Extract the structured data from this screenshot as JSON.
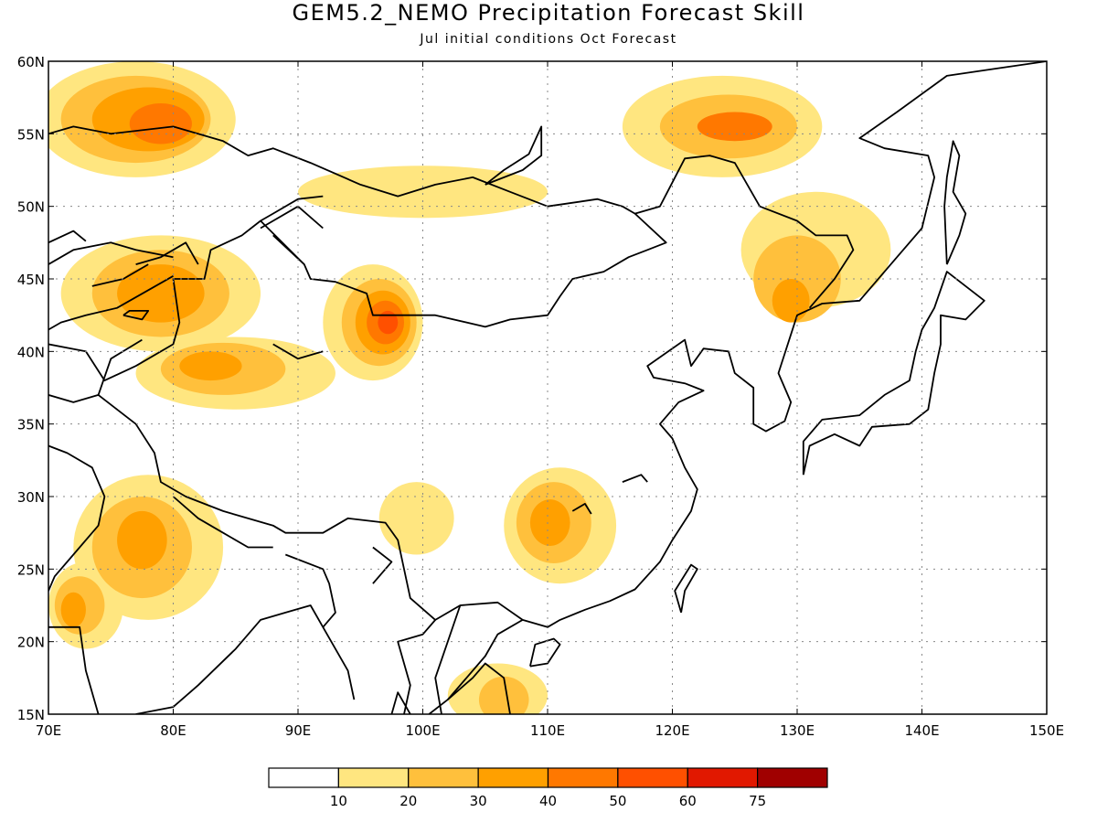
{
  "title": "GEM5.2_NEMO Precipitation Forecast Skill",
  "subtitle": "Jul initial conditions  Oct Forecast",
  "map": {
    "lon_range": [
      70,
      150
    ],
    "lat_range": [
      15,
      60
    ],
    "lon_ticks": [
      70,
      80,
      90,
      100,
      110,
      120,
      130,
      140,
      150
    ],
    "lat_ticks": [
      15,
      20,
      25,
      30,
      35,
      40,
      45,
      50,
      55,
      60
    ],
    "lon_tick_labels": [
      "70E",
      "80E",
      "90E",
      "100E",
      "110E",
      "120E",
      "130E",
      "140E",
      "150E"
    ],
    "lat_tick_labels": [
      "15N",
      "20N",
      "25N",
      "30N",
      "35N",
      "40N",
      "45N",
      "50N",
      "55N",
      "60N"
    ],
    "grid": "dotted"
  },
  "colorbar": {
    "levels": [
      10,
      20,
      30,
      40,
      50,
      60,
      75
    ],
    "labels": [
      "10",
      "20",
      "30",
      "40",
      "50",
      "60",
      "75"
    ],
    "colors": [
      "#ffffff",
      "#ffe680",
      "#ffc03c",
      "#ffa000",
      "#ff7800",
      "#ff5000",
      "#e11800",
      "#a00000"
    ]
  },
  "skill_regions": [
    {
      "level": 1,
      "lon": 77,
      "lat": 56,
      "rx": 8,
      "ry": 4
    },
    {
      "level": 2,
      "lon": 77,
      "lat": 56,
      "rx": 6,
      "ry": 3
    },
    {
      "level": 3,
      "lon": 78,
      "lat": 56,
      "rx": 4.5,
      "ry": 2.2
    },
    {
      "level": 4,
      "lon": 79,
      "lat": 55.7,
      "rx": 2.5,
      "ry": 1.4
    },
    {
      "level": 1,
      "lon": 124,
      "lat": 55.5,
      "rx": 8,
      "ry": 3.5
    },
    {
      "level": 2,
      "lon": 124.5,
      "lat": 55.5,
      "rx": 5.5,
      "ry": 2.2
    },
    {
      "level": 4,
      "lon": 125,
      "lat": 55.5,
      "rx": 3,
      "ry": 1
    },
    {
      "level": 1,
      "lon": 79,
      "lat": 44,
      "rx": 8,
      "ry": 4
    },
    {
      "level": 2,
      "lon": 79,
      "lat": 44,
      "rx": 5.5,
      "ry": 3
    },
    {
      "level": 3,
      "lon": 79,
      "lat": 44,
      "rx": 3.5,
      "ry": 2
    },
    {
      "level": 1,
      "lon": 96,
      "lat": 42,
      "rx": 4,
      "ry": 4
    },
    {
      "level": 2,
      "lon": 96.5,
      "lat": 42,
      "rx": 3,
      "ry": 3
    },
    {
      "level": 3,
      "lon": 96.8,
      "lat": 42,
      "rx": 2.2,
      "ry": 2.2
    },
    {
      "level": 4,
      "lon": 97,
      "lat": 42,
      "rx": 1.5,
      "ry": 1.5
    },
    {
      "level": 5,
      "lon": 97.2,
      "lat": 42,
      "rx": 0.8,
      "ry": 0.8
    },
    {
      "level": 1,
      "lon": 85,
      "lat": 38.5,
      "rx": 8,
      "ry": 2.5
    },
    {
      "level": 2,
      "lon": 84,
      "lat": 38.8,
      "rx": 5,
      "ry": 1.8
    },
    {
      "level": 3,
      "lon": 83,
      "lat": 39,
      "rx": 2.5,
      "ry": 1
    },
    {
      "level": 1,
      "lon": 78,
      "lat": 26.5,
      "rx": 6,
      "ry": 5
    },
    {
      "level": 2,
      "lon": 77.5,
      "lat": 26.5,
      "rx": 4,
      "ry": 3.5
    },
    {
      "level": 3,
      "lon": 77.5,
      "lat": 27,
      "rx": 2,
      "ry": 2
    },
    {
      "level": 1,
      "lon": 111,
      "lat": 28,
      "rx": 4.5,
      "ry": 4
    },
    {
      "level": 2,
      "lon": 110.5,
      "lat": 28.2,
      "rx": 3,
      "ry": 2.8
    },
    {
      "level": 3,
      "lon": 110.2,
      "lat": 28.2,
      "rx": 1.6,
      "ry": 1.6
    },
    {
      "level": 1,
      "lon": 131.5,
      "lat": 47,
      "rx": 6,
      "ry": 4
    },
    {
      "level": 2,
      "lon": 130,
      "lat": 45,
      "rx": 3.5,
      "ry": 3
    },
    {
      "level": 3,
      "lon": 129.5,
      "lat": 43.5,
      "rx": 1.5,
      "ry": 1.5
    },
    {
      "level": 1,
      "lon": 73,
      "lat": 22.5,
      "rx": 3,
      "ry": 3
    },
    {
      "level": 2,
      "lon": 72.5,
      "lat": 22.5,
      "rx": 2,
      "ry": 2
    },
    {
      "level": 3,
      "lon": 72,
      "lat": 22.2,
      "rx": 1,
      "ry": 1.2
    },
    {
      "level": 1,
      "lon": 106,
      "lat": 16.3,
      "rx": 4,
      "ry": 2.2
    },
    {
      "level": 2,
      "lon": 106.5,
      "lat": 16,
      "rx": 2,
      "ry": 1.6
    },
    {
      "level": 1,
      "lon": 100,
      "lat": 51,
      "rx": 10,
      "ry": 1.8
    },
    {
      "level": 1,
      "lon": 99.5,
      "lat": 28.5,
      "rx": 3,
      "ry": 2.5
    }
  ]
}
